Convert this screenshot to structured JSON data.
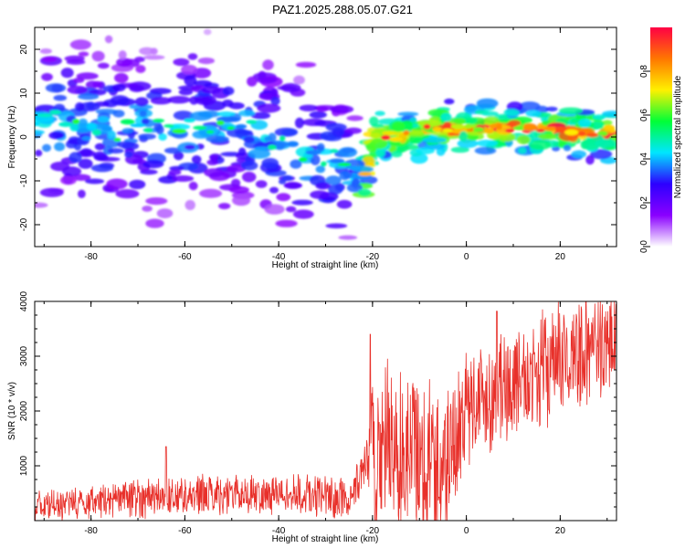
{
  "figure": {
    "title": "PAZ1.2025.288.05.07.G21"
  },
  "chart_data": [
    {
      "type": "heatmap",
      "title": "PAZ1.2025.288.05.07.G21",
      "xlabel": "Height of straight line (km)",
      "ylabel": "Frequency (Hz)",
      "xlim": [
        -92,
        32
      ],
      "ylim": [
        -25,
        25
      ],
      "xticks": [
        -80,
        -60,
        -40,
        -20,
        0,
        20
      ],
      "yticks": [
        -20,
        -10,
        0,
        10,
        20
      ],
      "colorbar": {
        "label": "Normalized spectral amplitude",
        "range": [
          0,
          1
        ],
        "ticks": [
          "0.0",
          "0.2",
          "0.4",
          "0.6",
          "0.8"
        ],
        "colors": [
          "#ffffff",
          "#8a00ff",
          "#2d00ff",
          "#00e6ff",
          "#00ff37",
          "#fff000",
          "#ff7700",
          "#ff0044"
        ]
      },
      "ridge": {
        "x": [
          -91,
          -85,
          -78,
          -70,
          -62,
          -55,
          -48,
          -42,
          -36,
          -30,
          -25,
          -22,
          -20,
          -14,
          -8,
          0,
          8,
          16,
          24,
          32
        ],
        "freq": [
          3,
          3,
          2,
          2,
          1,
          3,
          3,
          -1,
          -4,
          -5,
          -8,
          -11,
          0,
          0,
          2,
          2,
          2,
          2,
          1,
          1
        ]
      }
    },
    {
      "type": "line",
      "xlabel": "Height of straight line (km)",
      "ylabel": "SNR (10 * v/v)",
      "xlim": [
        -92,
        32
      ],
      "ylim": [
        0,
        4000
      ],
      "xticks": [
        -80,
        -60,
        -40,
        -20,
        0,
        20
      ],
      "yticks": [
        1000,
        2000,
        3000,
        4000
      ],
      "color": "#e8302a",
      "trend": {
        "x": [
          -92,
          -85,
          -70,
          -50,
          -35,
          -25,
          -21,
          -18,
          -10,
          -5,
          0,
          10,
          20,
          32
        ],
        "y": [
          250,
          300,
          420,
          500,
          470,
          380,
          1100,
          1300,
          1250,
          900,
          2100,
          2500,
          2900,
          3300
        ]
      },
      "spread": {
        "x": [
          -92,
          -70,
          -40,
          -21,
          -20,
          -5,
          0,
          32
        ],
        "y": [
          300,
          400,
          400,
          500,
          1800,
          1800,
          1200,
          1100
        ]
      },
      "peaks": [
        {
          "x": -20.5,
          "y": 3400
        },
        {
          "x": -64,
          "y": 1350
        },
        {
          "x": 6.5,
          "y": 3820
        },
        {
          "x": 32,
          "y": 3950
        }
      ]
    }
  ]
}
